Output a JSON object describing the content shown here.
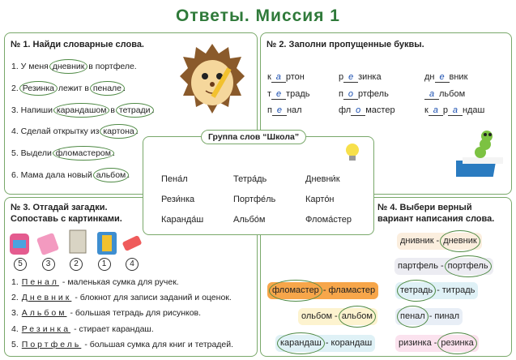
{
  "title": "Ответы. Миссия 1",
  "task1": {
    "heading": "№ 1. Найди словарные слова.",
    "sentences": [
      [
        {
          "text": "1. У меня "
        },
        {
          "word": "дневник"
        },
        {
          "text": " в портфеле."
        }
      ],
      [
        {
          "text": "2. "
        },
        {
          "word": "Резинка"
        },
        {
          "text": " лежит в "
        },
        {
          "word": "пенале"
        },
        {
          "text": "."
        }
      ],
      [
        {
          "text": "3. Напиши "
        },
        {
          "word": "карандашом"
        },
        {
          "text": " в "
        },
        {
          "word": "тетради"
        },
        {
          "text": "."
        }
      ],
      [
        {
          "text": "4. Сделай открытку из "
        },
        {
          "word": "картона"
        },
        {
          "text": "."
        }
      ],
      [
        {
          "text": "5. Выдели "
        },
        {
          "word": "фломастером"
        },
        {
          "text": "."
        }
      ],
      [
        {
          "text": "6. Мама дала новый "
        },
        {
          "word": "альбом"
        },
        {
          "text": "."
        }
      ]
    ]
  },
  "task2": {
    "heading": "№ 2. Заполни пропущенные буквы.",
    "items": [
      [
        {
          "text": "к"
        },
        {
          "blank": "а"
        },
        {
          "text": "ртон"
        }
      ],
      [
        {
          "text": "р"
        },
        {
          "blank": "е"
        },
        {
          "text": "зинка"
        }
      ],
      [
        {
          "text": "дн"
        },
        {
          "blank": "е"
        },
        {
          "text": "вник"
        }
      ],
      [
        {
          "text": "т"
        },
        {
          "blank": "е"
        },
        {
          "text": "традь"
        }
      ],
      [
        {
          "text": "п"
        },
        {
          "blank": "о"
        },
        {
          "text": "ртфель"
        }
      ],
      [
        {
          "blank": "а"
        },
        {
          "text": "льбом"
        }
      ],
      [
        {
          "text": "п"
        },
        {
          "blank": "е"
        },
        {
          "text": "нал"
        }
      ],
      [
        {
          "text": "фл"
        },
        {
          "blank": "о"
        },
        {
          "text": "мастер"
        }
      ],
      [
        {
          "text": "к"
        },
        {
          "blank": "а"
        },
        {
          "text": "р"
        },
        {
          "blank": "а"
        },
        {
          "text": "ндаш"
        }
      ]
    ]
  },
  "task3": {
    "heading": [
      "№ 3. Отгадай загадки.",
      "Сопоставь с картинками."
    ],
    "answers": [
      5,
      3,
      2,
      1,
      4
    ],
    "riddles": [
      {
        "num": "1.",
        "word": "Пенал",
        "desc": "- маленькая сумка для ручек."
      },
      {
        "num": "2.",
        "word": "Дневник",
        "desc": "- блокнот для записи заданий и оценок."
      },
      {
        "num": "3.",
        "word": "Альбом",
        "desc": "- большая тетрадь для рисунков."
      },
      {
        "num": "4.",
        "word": "Резинка",
        "desc": "- стирает карандаш."
      },
      {
        "num": "5.",
        "word": "Портфель",
        "desc": "- большая сумка для книг и тетрадей."
      }
    ]
  },
  "task4": {
    "heading": [
      "№ 4. Выбери верный",
      "вариант написания слова."
    ],
    "separator": "-",
    "items": [
      {
        "options": [
          "днивник",
          "дневник"
        ],
        "circled": 1,
        "color": "#fbeede"
      },
      {
        "options": [
          "партфель",
          "портфель"
        ],
        "circled": 1,
        "color": "#ececf2"
      },
      {
        "options": [
          "фломастер",
          "фламастер"
        ],
        "circled": 0,
        "color": "#f7a64a"
      },
      {
        "options": [
          "тетрадь",
          "титрадь"
        ],
        "circled": 0,
        "color": "#dff1f6"
      },
      {
        "options": [
          "ольбом",
          "альбом"
        ],
        "circled": 1,
        "color": "#fdf3cf"
      },
      {
        "options": [
          "пенал",
          "пинал"
        ],
        "circled": 0,
        "color": "#e8eef6"
      },
      {
        "options": [
          "карандаш",
          "корандаш"
        ],
        "circled": 0,
        "color": "#dff1f6"
      },
      {
        "options": [
          "ризинка",
          "резинка"
        ],
        "circled": 1,
        "color": "#fbe2ee"
      }
    ]
  },
  "center": {
    "title": "Группа слов “Школа”",
    "words": [
      "Пена́л",
      "Тетра́дь",
      "Дневни́к",
      "Рези́нка",
      "Портфе́ль",
      "Карто́н",
      "Каранда́ш",
      "Альбо́м",
      "Флома́стер"
    ]
  }
}
